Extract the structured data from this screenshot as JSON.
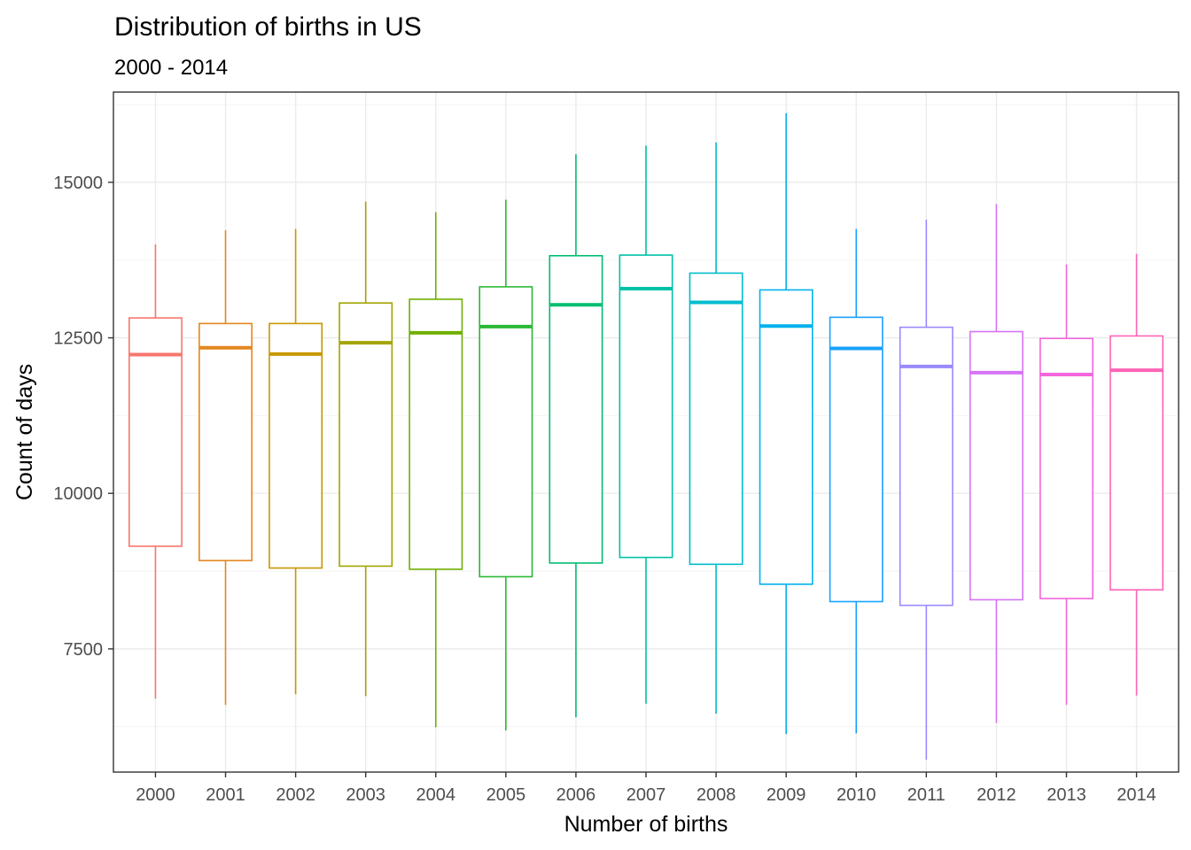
{
  "chart_data": {
    "type": "boxplot",
    "title": "Distribution of births in US",
    "subtitle": "2000 - 2014",
    "xlabel": "Number of births",
    "ylabel": "Count of days",
    "ylim": [
      5520,
      16450
    ],
    "yticks": [
      7500,
      10000,
      12500,
      15000
    ],
    "ytick_labels": [
      "7500",
      "10000",
      "12500",
      "15000"
    ],
    "grid": true,
    "legend": "none",
    "categories": [
      "2000",
      "2001",
      "2002",
      "2003",
      "2004",
      "2005",
      "2006",
      "2007",
      "2008",
      "2009",
      "2010",
      "2011",
      "2012",
      "2013",
      "2014"
    ],
    "colors": [
      "#F8766D",
      "#DB8E00",
      "#AEA200",
      "#64B200",
      "#00BD5C",
      "#00C1A7",
      "#00BADE",
      "#00A6FF",
      "#B385FF",
      "#EF67EB",
      "#FF63B6"
    ],
    "boxes": [
      {
        "min": 6700,
        "q1": 9150,
        "median": 12230,
        "q3": 12820,
        "max": 14000
      },
      {
        "min": 6600,
        "q1": 8920,
        "median": 12340,
        "q3": 12730,
        "max": 14230
      },
      {
        "min": 6770,
        "q1": 8800,
        "median": 12240,
        "q3": 12730,
        "max": 14250
      },
      {
        "min": 6740,
        "q1": 8830,
        "median": 12420,
        "q3": 13060,
        "max": 14690
      },
      {
        "min": 6240,
        "q1": 8780,
        "median": 12580,
        "q3": 13120,
        "max": 14520
      },
      {
        "min": 6190,
        "q1": 8660,
        "median": 12680,
        "q3": 13320,
        "max": 14720
      },
      {
        "min": 6400,
        "q1": 8880,
        "median": 13030,
        "q3": 13820,
        "max": 15450
      },
      {
        "min": 6620,
        "q1": 8970,
        "median": 13290,
        "q3": 13830,
        "max": 15590
      },
      {
        "min": 6460,
        "q1": 8860,
        "median": 13070,
        "q3": 13540,
        "max": 15640
      },
      {
        "min": 6130,
        "q1": 8540,
        "median": 12690,
        "q3": 13270,
        "max": 16110
      },
      {
        "min": 6140,
        "q1": 8260,
        "median": 12330,
        "q3": 12830,
        "max": 14250
      },
      {
        "min": 5720,
        "q1": 8200,
        "median": 12040,
        "q3": 12670,
        "max": 14400
      },
      {
        "min": 6310,
        "q1": 8290,
        "median": 11940,
        "q3": 12600,
        "max": 14650
      },
      {
        "min": 6600,
        "q1": 8310,
        "median": 11910,
        "q3": 12490,
        "max": 13680
      },
      {
        "min": 6750,
        "q1": 8450,
        "median": 11980,
        "q3": 12530,
        "max": 13850
      }
    ]
  }
}
